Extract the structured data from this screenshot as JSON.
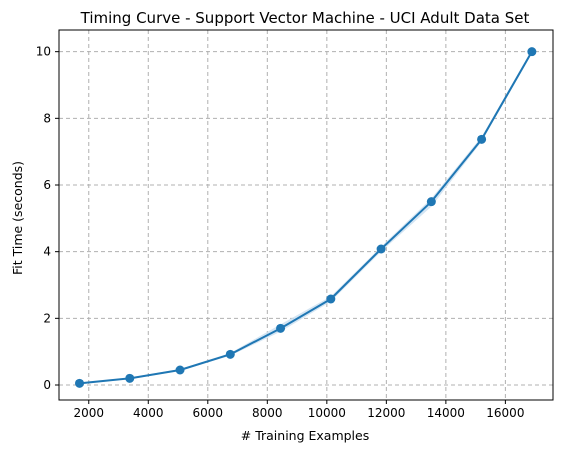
{
  "chart_data": {
    "type": "line",
    "title": "Timing Curve - Support Vector Machine - UCI Adult Data Set",
    "xlabel": "# Training Examples",
    "ylabel": "Fit Time (seconds)",
    "xlim": [
      1000,
      17600
    ],
    "ylim": [
      -0.45,
      10.65
    ],
    "xticks": [
      2000,
      4000,
      6000,
      8000,
      10000,
      12000,
      14000,
      16000
    ],
    "yticks": [
      0,
      2,
      4,
      6,
      8,
      10
    ],
    "grid": true,
    "line_color": "#1f77b4",
    "band_color": "#c9dff0",
    "series": [
      {
        "x": [
          1689,
          3378,
          5067,
          6756,
          8445,
          10134,
          11823,
          13512,
          15201,
          16890
        ],
        "y": [
          0.05,
          0.2,
          0.45,
          0.92,
          1.7,
          2.58,
          4.08,
          5.5,
          7.37,
          10.0
        ],
        "band_low": [
          0.04,
          0.18,
          0.42,
          0.88,
          1.6,
          2.5,
          4.0,
          5.35,
          7.3,
          9.95
        ],
        "band_high": [
          0.06,
          0.22,
          0.48,
          0.96,
          1.82,
          2.66,
          4.15,
          5.6,
          7.45,
          10.05
        ]
      }
    ]
  }
}
